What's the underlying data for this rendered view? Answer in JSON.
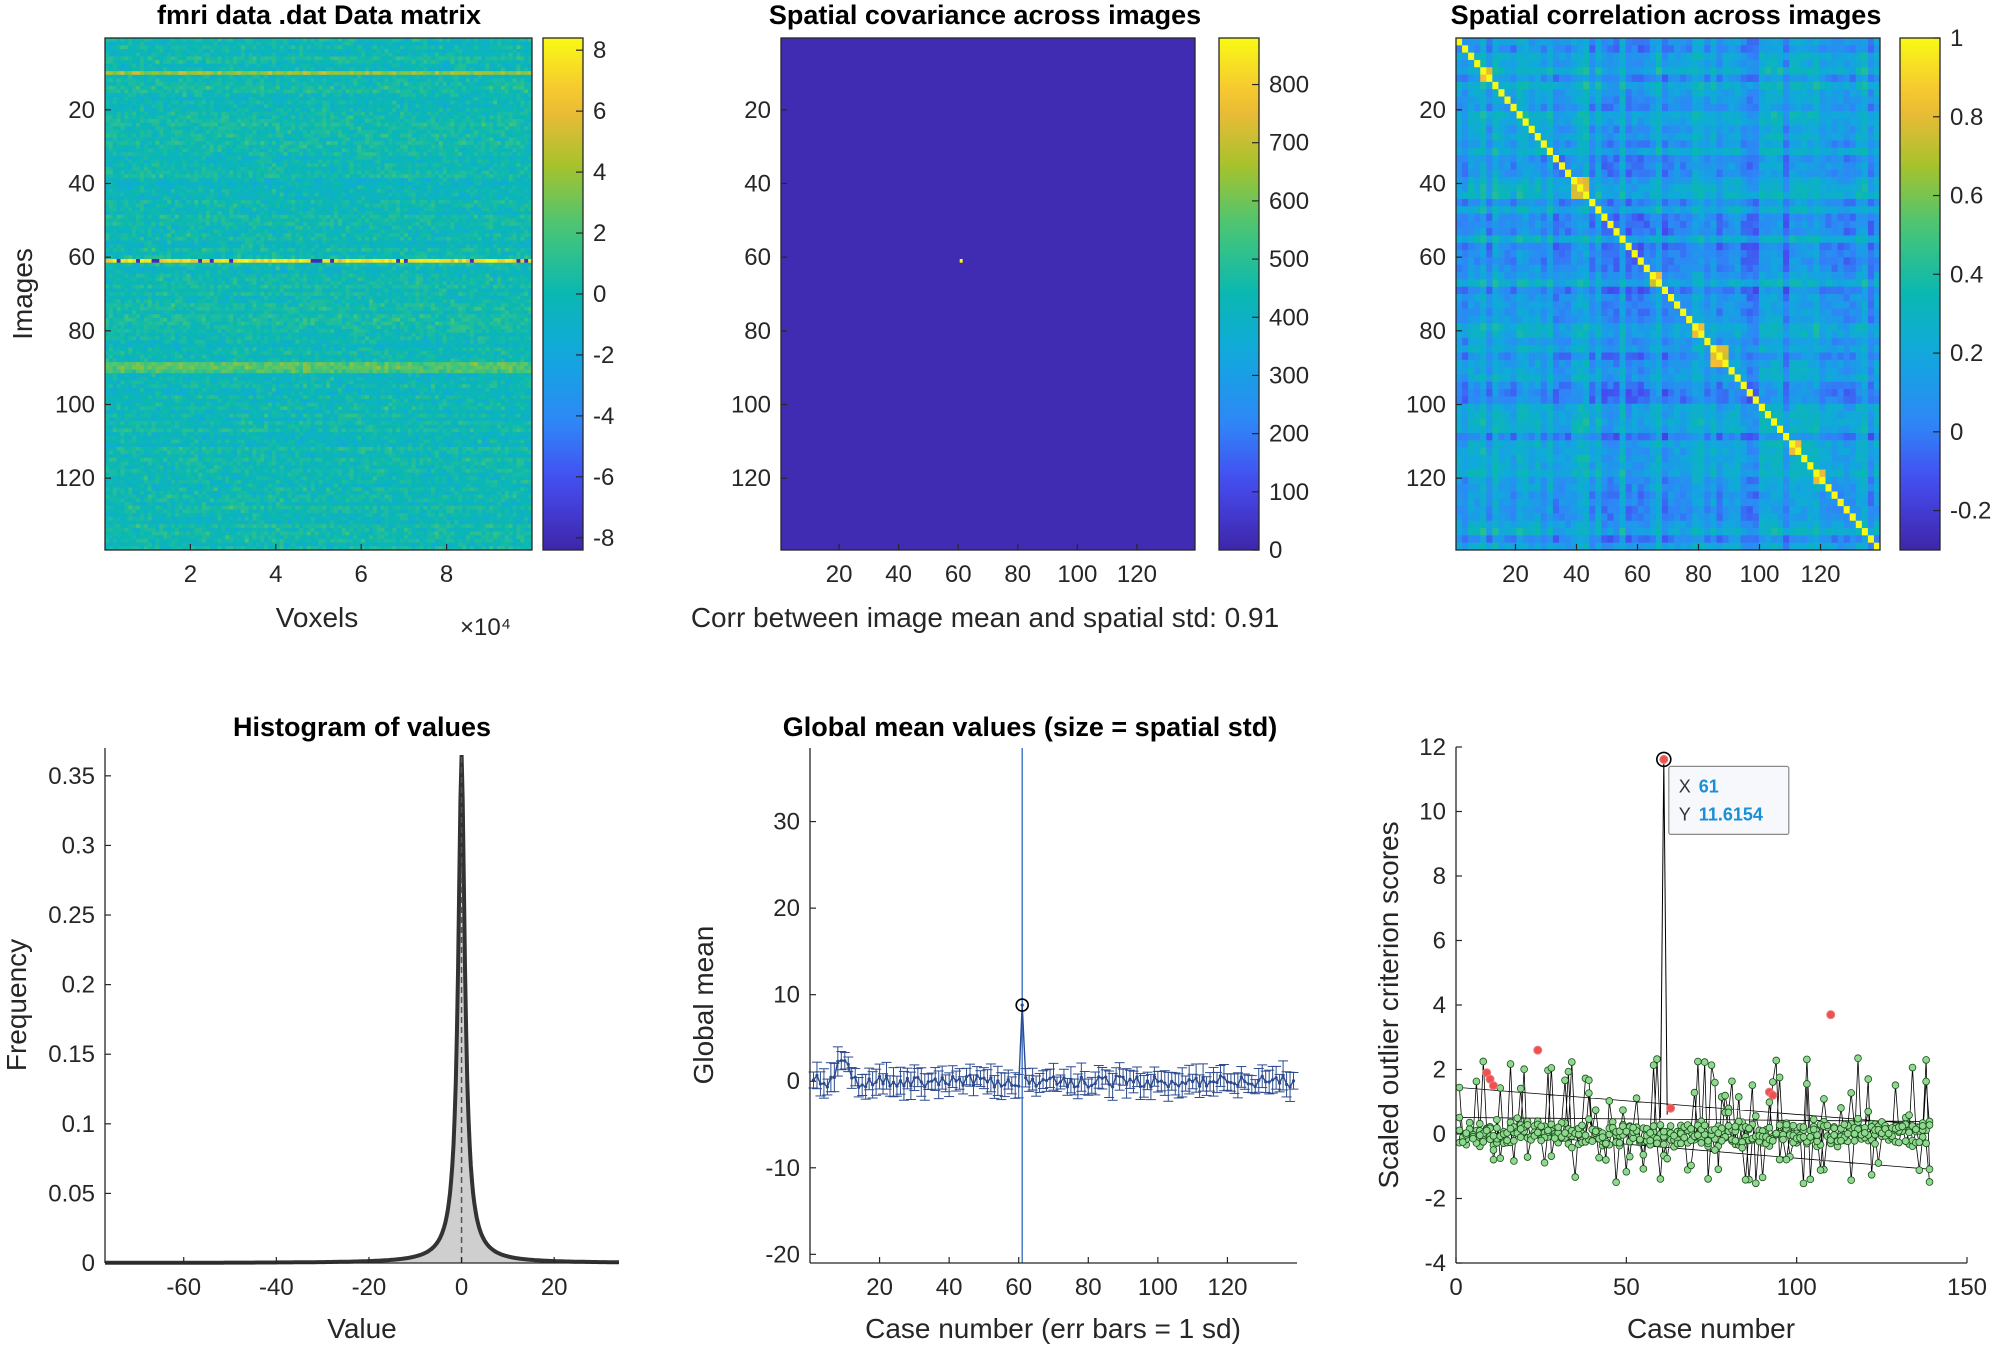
{
  "chart_data": [
    {
      "id": "data_matrix",
      "type": "heatmap",
      "title": "fmri data .dat Data matrix",
      "xlabel": "Voxels",
      "ylabel": "Images",
      "x_exponent_label": "×10⁴",
      "x_ticks": [
        "2",
        "4",
        "6",
        "8"
      ],
      "x_tick_values": [
        20000,
        40000,
        60000,
        80000
      ],
      "xlim": [
        0,
        100000
      ],
      "y_ticks": [
        "20",
        "40",
        "60",
        "80",
        "100",
        "120"
      ],
      "y_tick_values": [
        20,
        40,
        60,
        80,
        100,
        120
      ],
      "ylim": [
        0.5,
        139.5
      ],
      "n_rows": 139,
      "colorbar_ticks": [
        "8",
        "6",
        "4",
        "2",
        "0",
        "-2",
        "-4",
        "-6",
        "-8"
      ],
      "colorbar_values": [
        8,
        6,
        4,
        2,
        0,
        -2,
        -4,
        -6,
        -8
      ],
      "clim": [
        -8.4,
        8.4
      ],
      "notable_rows": [
        {
          "row": 10,
          "mean": 4
        },
        {
          "row": 61,
          "mean": 7.5
        },
        {
          "row": 89,
          "mean": 2.5
        },
        {
          "row": 90,
          "mean": 2.5
        },
        {
          "row": 91,
          "mean": 2
        }
      ]
    },
    {
      "id": "covariance",
      "type": "heatmap",
      "title": "Spatial covariance across images",
      "xlabel": "Corr between image mean and spatial std: 0.91",
      "ylabel": "",
      "x_ticks": [
        "20",
        "40",
        "60",
        "80",
        "100",
        "120"
      ],
      "x_tick_values": [
        20,
        40,
        60,
        80,
        100,
        120
      ],
      "y_ticks": [
        "20",
        "40",
        "60",
        "80",
        "100",
        "120"
      ],
      "y_tick_values": [
        20,
        40,
        60,
        80,
        100,
        120
      ],
      "lim": [
        0.5,
        139.5
      ],
      "colorbar_ticks": [
        "800",
        "700",
        "600",
        "500",
        "400",
        "300",
        "200",
        "100",
        "0"
      ],
      "colorbar_values": [
        800,
        700,
        600,
        500,
        400,
        300,
        200,
        100,
        0
      ],
      "clim": [
        0,
        880
      ],
      "peak": {
        "row": 61,
        "col": 61,
        "value": 880
      }
    },
    {
      "id": "correlation",
      "type": "heatmap",
      "title": "Spatial correlation across images",
      "x_ticks": [
        "20",
        "40",
        "60",
        "80",
        "100",
        "120"
      ],
      "x_tick_values": [
        20,
        40,
        60,
        80,
        100,
        120
      ],
      "y_ticks": [
        "20",
        "40",
        "60",
        "80",
        "100",
        "120"
      ],
      "y_tick_values": [
        20,
        40,
        60,
        80,
        100,
        120
      ],
      "lim": [
        0.5,
        139.5
      ],
      "colorbar_ticks": [
        "1",
        "0.8",
        "0.6",
        "0.4",
        "0.2",
        "0",
        "-0.2"
      ],
      "colorbar_values": [
        1,
        0.8,
        0.6,
        0.4,
        0.2,
        0,
        -0.2
      ],
      "clim": [
        -0.3,
        1
      ],
      "diagonal": 1,
      "blocks": [
        [
          8,
          12
        ],
        [
          38,
          43
        ],
        [
          64,
          68
        ],
        [
          78,
          82
        ],
        [
          85,
          90
        ],
        [
          110,
          114
        ],
        [
          118,
          122
        ]
      ]
    },
    {
      "id": "histogram",
      "type": "area",
      "title": "Histogram of values",
      "xlabel": "Value",
      "ylabel": "Frequency",
      "x_ticks": [
        "-60",
        "-40",
        "-20",
        "0",
        "20"
      ],
      "x_tick_values": [
        -60,
        -40,
        -20,
        0,
        20
      ],
      "xlim": [
        -77,
        34
      ],
      "y_ticks": [
        "0",
        "0.05",
        "0.1",
        "0.15",
        "0.2",
        "0.25",
        "0.3",
        "0.35"
      ],
      "y_tick_values": [
        0,
        0.05,
        0.1,
        0.15,
        0.2,
        0.25,
        0.3,
        0.35
      ],
      "ylim": [
        0,
        0.37
      ],
      "peak": {
        "x": 0,
        "y": 0.365
      }
    },
    {
      "id": "global_mean",
      "type": "line",
      "title": "Global mean values (size = spatial std)",
      "xlabel": "Case number (err bars = 1 sd)",
      "ylabel": "Global mean",
      "x_ticks": [
        "20",
        "40",
        "60",
        "80",
        "100",
        "120"
      ],
      "x_tick_values": [
        20,
        40,
        60,
        80,
        100,
        120
      ],
      "xlim": [
        0,
        140
      ],
      "y_ticks": [
        "30",
        "20",
        "10",
        "0",
        "-10",
        "-20"
      ],
      "y_tick_values": [
        30,
        20,
        10,
        0,
        -10,
        -20
      ],
      "ylim": [
        -21,
        38.5
      ],
      "highlight": {
        "x": 61,
        "y": 8.8,
        "err_top": 38.5,
        "err_bottom": -21
      },
      "n_points": 139
    },
    {
      "id": "outlier",
      "type": "scatter",
      "title": "",
      "xlabel": "Case number",
      "ylabel": "Scaled outlier criterion scores",
      "x_ticks": [
        "0",
        "50",
        "100",
        "150"
      ],
      "x_tick_values": [
        0,
        50,
        100,
        150
      ],
      "xlim": [
        0,
        150
      ],
      "y_ticks": [
        "12",
        "10",
        "8",
        "6",
        "4",
        "2",
        "0",
        "-2",
        "-4"
      ],
      "y_tick_values": [
        12,
        10,
        8,
        6,
        4,
        2,
        0,
        -2,
        -4
      ],
      "ylim": [
        -4,
        12
      ],
      "outliers": [
        {
          "x": 9,
          "y": 1.9
        },
        {
          "x": 10,
          "y": 1.7
        },
        {
          "x": 11,
          "y": 1.5
        },
        {
          "x": 24,
          "y": 2.6
        },
        {
          "x": 61,
          "y": 11.6154
        },
        {
          "x": 63,
          "y": 0.8
        },
        {
          "x": 92,
          "y": 1.3
        },
        {
          "x": 93,
          "y": 1.2
        },
        {
          "x": 110,
          "y": 3.7
        }
      ],
      "datatip": {
        "x_label": "X",
        "x_value": "61",
        "y_label": "Y",
        "y_value": "11.6154"
      }
    }
  ]
}
